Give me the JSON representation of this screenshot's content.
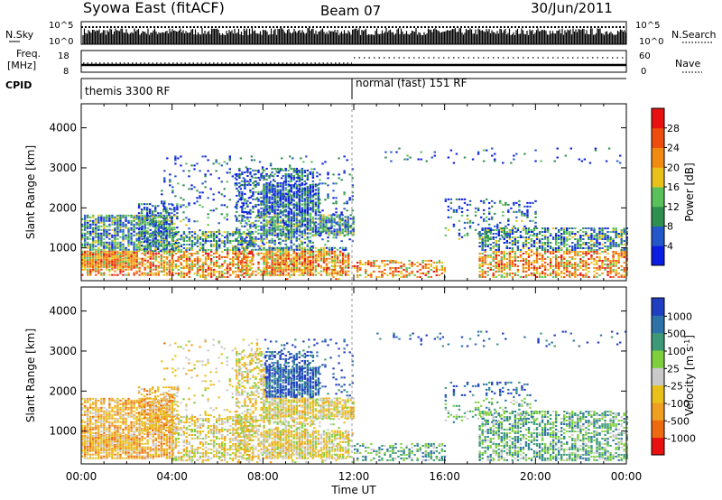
{
  "header": {
    "station": "Syowa East (fitACF)",
    "beam": "Beam 07",
    "date": "30/Jun/2011"
  },
  "panels": {
    "nsky": {
      "label": "N.Sky",
      "ticks": [
        "10^5",
        "10^0"
      ],
      "right_label": "N.Search",
      "right_ticks": [
        "10^5",
        "10^0"
      ]
    },
    "freq": {
      "label_line1": "Freq.",
      "label_line2": "[MHz]",
      "ticks": [
        "18",
        "8"
      ],
      "right_label": "Nave",
      "right_ticks": [
        "60",
        "0"
      ]
    },
    "cpid": {
      "label": "CPID",
      "modes": [
        "themis 3300 RF",
        "normal (fast) 151 RF"
      ]
    }
  },
  "colors": {
    "power": [
      "#0b1de0",
      "#2457c9",
      "#2f8f4e",
      "#5ac15a",
      "#e8c21a",
      "#f08a10",
      "#ee4d0e",
      "#e81010"
    ],
    "velocity": [
      "#1f3fc0",
      "#2d72a8",
      "#3c9a78",
      "#7fcf3c",
      "#c9c9c9",
      "#e8c21a",
      "#f0a020",
      "#ee6a10",
      "#e81010"
    ]
  },
  "chart_data": [
    {
      "type": "heatmap",
      "name": "Power",
      "ylabel": "Slant Range [km]",
      "yticks": [
        "1000",
        "2000",
        "3000",
        "4000"
      ],
      "ylim": [
        180,
        4600
      ],
      "xlim": [
        "00:00",
        "24:00"
      ],
      "colorbar": {
        "label": "Power [dB]",
        "ticks": [
          "4",
          "8",
          "12",
          "16",
          "20",
          "24",
          "28"
        ],
        "range": [
          0,
          32
        ]
      }
    },
    {
      "type": "heatmap",
      "name": "Velocity",
      "ylabel": "Slant Range [km]",
      "yticks": [
        "1000",
        "2000",
        "3000",
        "4000"
      ],
      "ylim": [
        180,
        4600
      ],
      "xlim": [
        "00:00",
        "24:00"
      ],
      "xticks": [
        "00:00",
        "04:00",
        "08:00",
        "12:00",
        "16:00",
        "20:00",
        "00:00"
      ],
      "xlabel": "Time UT",
      "colorbar": {
        "label": "Velocity [m s^-1]",
        "ticks": [
          "1000",
          "500",
          "100",
          "25",
          "-25",
          "-100",
          "-500",
          "-1000"
        ]
      }
    }
  ]
}
